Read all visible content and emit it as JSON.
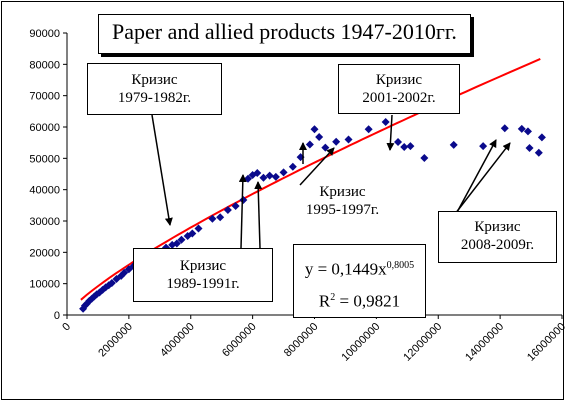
{
  "chart_data": {
    "type": "scatter",
    "title": "Paper and allied products 1947-2010гг.",
    "xlabel": "",
    "ylabel": "",
    "xlim": [
      0,
      16000000
    ],
    "ylim": [
      0,
      90000
    ],
    "x_ticks": [
      "0",
      "2000000",
      "4000000",
      "6000000",
      "8000000",
      "10000000",
      "12000000",
      "14000000",
      "16000000"
    ],
    "y_ticks": [
      "0",
      "10000",
      "20000",
      "30000",
      "40000",
      "50000",
      "60000",
      "70000",
      "80000",
      "90000"
    ],
    "grid": false,
    "series": [
      {
        "marker": "diamond",
        "color": "#0a0a8c",
        "points": [
          [
            520000,
            2000
          ],
          [
            580000,
            3000
          ],
          [
            640000,
            3600
          ],
          [
            720000,
            4500
          ],
          [
            800000,
            5200
          ],
          [
            880000,
            5900
          ],
          [
            960000,
            6600
          ],
          [
            1050000,
            7200
          ],
          [
            1150000,
            8000
          ],
          [
            1250000,
            8800
          ],
          [
            1350000,
            9500
          ],
          [
            1450000,
            10200
          ],
          [
            1600000,
            11500
          ],
          [
            1750000,
            12500
          ],
          [
            1850000,
            13500
          ],
          [
            2000000,
            14600
          ],
          [
            2150000,
            15600
          ],
          [
            2300000,
            16800
          ],
          [
            2450000,
            17500
          ],
          [
            2600000,
            18200
          ],
          [
            2800000,
            19300
          ],
          [
            3000000,
            20200
          ],
          [
            3200000,
            21500
          ],
          [
            3400000,
            22400
          ],
          [
            3550000,
            22800
          ],
          [
            3700000,
            24000
          ],
          [
            3900000,
            25200
          ],
          [
            4050000,
            26000
          ],
          [
            4250000,
            27600
          ],
          [
            4700000,
            30700
          ],
          [
            4950000,
            31200
          ],
          [
            5200000,
            33500
          ],
          [
            5450000,
            34800
          ],
          [
            5700000,
            36700
          ],
          [
            5850000,
            43500
          ],
          [
            6000000,
            44700
          ],
          [
            6150000,
            45300
          ],
          [
            6350000,
            43800
          ],
          [
            6550000,
            44500
          ],
          [
            6750000,
            44100
          ],
          [
            7000000,
            45500
          ],
          [
            7300000,
            47300
          ],
          [
            7550000,
            50400
          ],
          [
            7850000,
            54400
          ],
          [
            8000000,
            59300
          ],
          [
            8150000,
            56800
          ],
          [
            8350000,
            53400
          ],
          [
            8700000,
            55300
          ],
          [
            9100000,
            56000
          ],
          [
            9750000,
            59300
          ],
          [
            10300000,
            61600
          ],
          [
            10700000,
            55200
          ],
          [
            10900000,
            53600
          ],
          [
            11100000,
            53900
          ],
          [
            11550000,
            50100
          ],
          [
            12500000,
            54300
          ],
          [
            13450000,
            53900
          ],
          [
            14150000,
            59600
          ],
          [
            14700000,
            59400
          ],
          [
            14900000,
            58600
          ],
          [
            14950000,
            53300
          ],
          [
            15250000,
            51800
          ],
          [
            15350000,
            56700
          ]
        ]
      },
      {
        "type": "trend_line",
        "color": "#ff0000",
        "equation": "y = 0,1449x^0,8005",
        "r2": "0,9821",
        "x_range": [
          450000,
          15300000
        ]
      }
    ],
    "annotations": [
      {
        "text": "Кризис\n1979-1982г."
      },
      {
        "text": "Кризис\n1989-1991г."
      },
      {
        "text": "Кризис\n1995-1997г."
      },
      {
        "text": "Кризис\n2001-2002г."
      },
      {
        "text": "Кризис\n2008-2009г."
      }
    ],
    "equation_box": {
      "eq_prefix": "y = 0,1449x",
      "eq_exp": "0,8005",
      "r2_prefix": "R",
      "r2_exp": "2",
      "r2_suffix": " = 0,9821"
    }
  }
}
